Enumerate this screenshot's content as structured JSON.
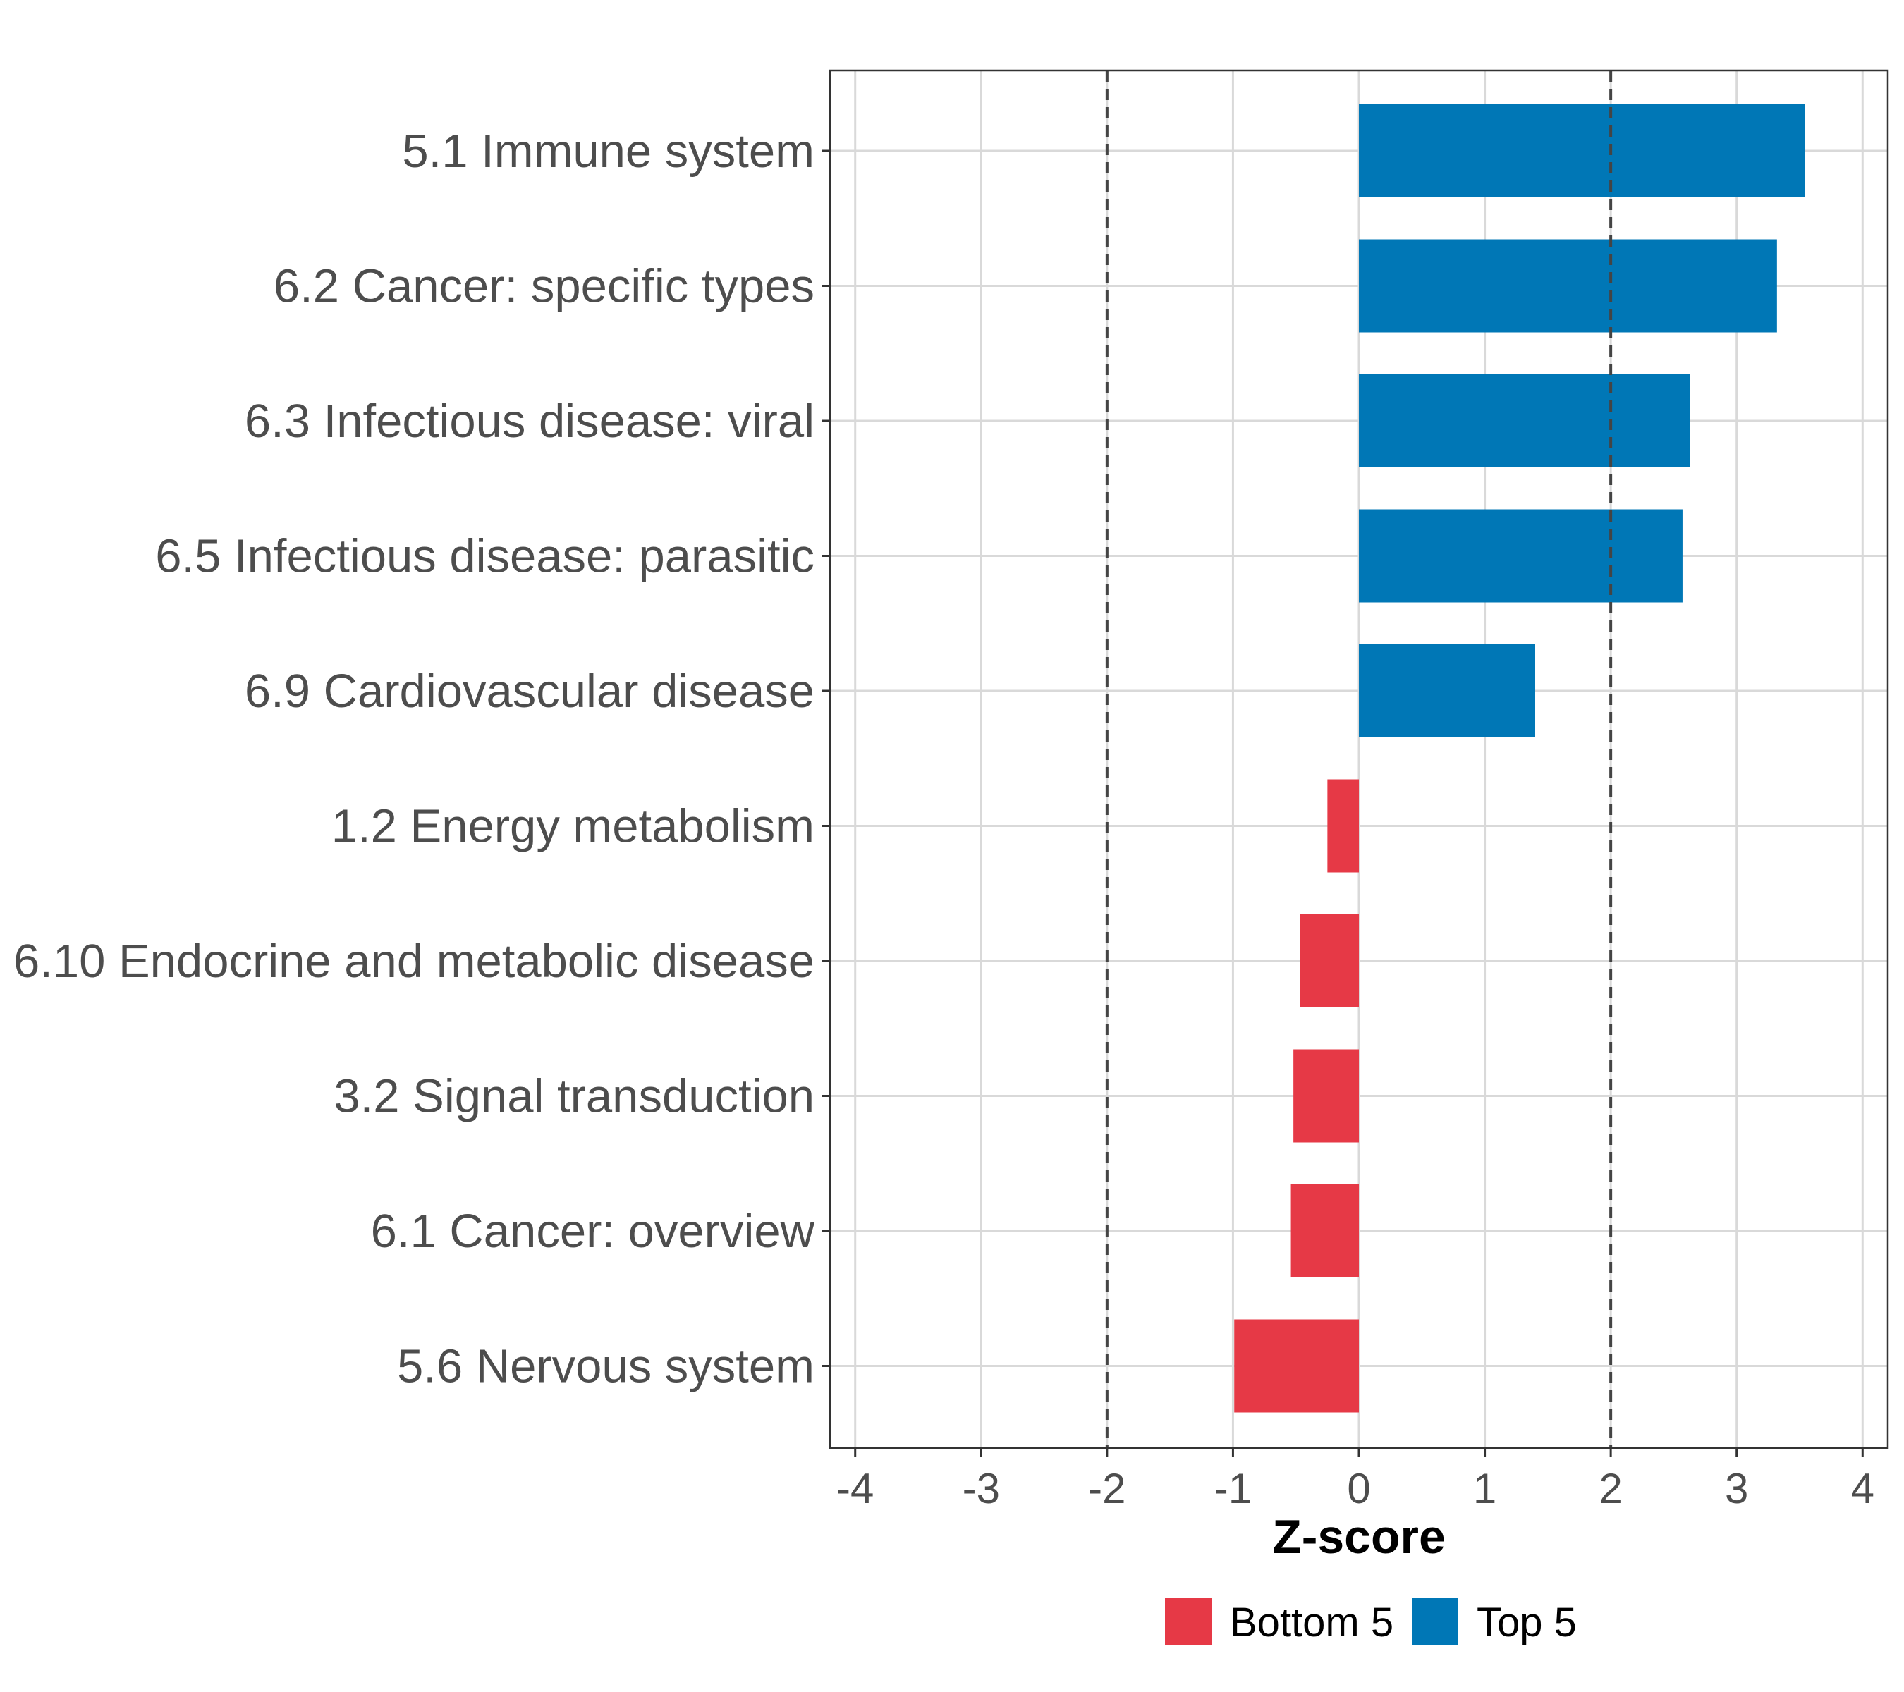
{
  "chart_data": {
    "type": "bar",
    "orientation": "horizontal",
    "title": "",
    "xlabel": "Z-score",
    "ylabel": "",
    "xlim": [
      -4.2,
      4.2
    ],
    "x_ticks": [
      -4,
      -3,
      -2,
      -1,
      0,
      1,
      2,
      3,
      4
    ],
    "x_tick_labels": [
      "-4",
      "-3",
      "-2",
      "-1",
      "0",
      "1",
      "2",
      "3",
      "4"
    ],
    "reference_lines": [
      -2,
      2
    ],
    "grid": true,
    "categories": [
      "5.1 Immune system",
      "6.2 Cancer: specific types",
      "6.3 Infectious disease: viral",
      "6.5 Infectious disease: parasitic",
      "6.9 Cardiovascular disease",
      "1.2 Energy metabolism",
      "6.10 Endocrine and metabolic disease",
      "3.2 Signal transduction",
      "6.1 Cancer: overview",
      "5.6 Nervous system"
    ],
    "values": [
      3.54,
      3.32,
      2.63,
      2.57,
      1.4,
      -0.25,
      -0.47,
      -0.52,
      -0.54,
      -0.99
    ],
    "groups": [
      "Top 5",
      "Top 5",
      "Top 5",
      "Top 5",
      "Top 5",
      "Bottom 5",
      "Bottom 5",
      "Bottom 5",
      "Bottom 5",
      "Bottom 5"
    ],
    "legend": {
      "position": "bottom",
      "entries": [
        {
          "label": "Bottom 5",
          "color": "#e63946"
        },
        {
          "label": "Top 5",
          "color": "#0077b6"
        }
      ]
    },
    "colors": {
      "Top 5": "#0077b6",
      "Bottom 5": "#e63946"
    }
  }
}
